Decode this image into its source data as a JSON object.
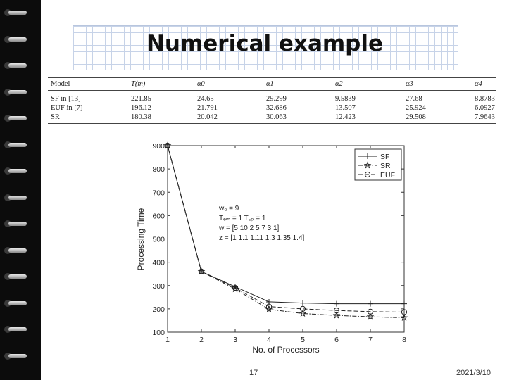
{
  "slide": {
    "title": "Numerical example",
    "page_number": "17",
    "date": "2021/3/10"
  },
  "table": {
    "headers": [
      "Model",
      "T(m)",
      "α0",
      "α1",
      "α2",
      "α3",
      "α4"
    ],
    "rows": [
      [
        "SF in [13]",
        "221.85",
        "24.65",
        "29.299",
        "9.5839",
        "27.68",
        "8.8783"
      ],
      [
        "EUF in [7]",
        "196.12",
        "21.791",
        "32.686",
        "13.507",
        "25.924",
        "6.0927"
      ],
      [
        "SR",
        "180.38",
        "20.042",
        "30.063",
        "12.423",
        "29.508",
        "7.9643"
      ]
    ]
  },
  "chart_data": {
    "type": "line",
    "xlabel": "No. of Processors",
    "ylabel": "Processing Time",
    "x": [
      1,
      2,
      3,
      4,
      5,
      6,
      7,
      8
    ],
    "xlim": [
      1,
      8
    ],
    "ylim": [
      100,
      900
    ],
    "yticks": [
      100,
      200,
      300,
      400,
      500,
      600,
      700,
      800,
      900
    ],
    "series": [
      {
        "name": "SF",
        "marker": "+",
        "dash": "solid",
        "values": [
          900,
          360,
          295,
          230,
          225,
          222,
          222,
          222
        ]
      },
      {
        "name": "SR",
        "marker": "star",
        "dash": "dashdot",
        "values": [
          900,
          360,
          285,
          198,
          180,
          172,
          166,
          162
        ]
      },
      {
        "name": "EUF",
        "marker": "circle",
        "dash": "dashed",
        "values": [
          900,
          360,
          290,
          210,
          200,
          193,
          188,
          186
        ]
      }
    ],
    "annotation_lines": [
      "w₀ = 9",
      "Tₑₘ = 1 T꜀ₚ = 1",
      "w = [5 10 2 5 7 3 1]",
      "z = [1 1.1 1.11 1.3 1.35 1.4]"
    ],
    "legend_position": "top-right",
    "grid": false
  }
}
